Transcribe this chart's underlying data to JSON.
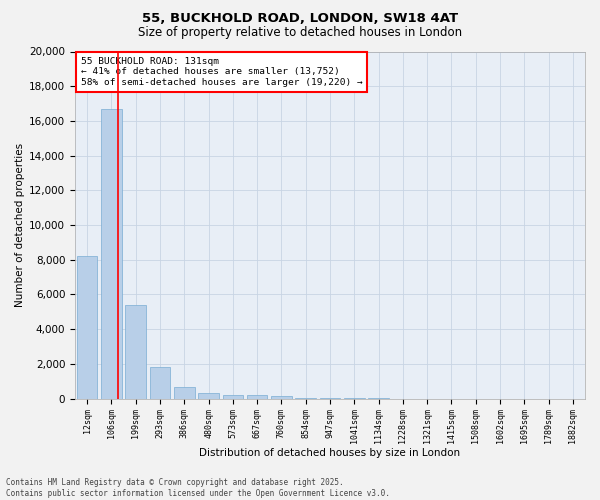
{
  "title1": "55, BUCKHOLD ROAD, LONDON, SW18 4AT",
  "title2": "Size of property relative to detached houses in London",
  "xlabel": "Distribution of detached houses by size in London",
  "ylabel": "Number of detached properties",
  "categories": [
    "12sqm",
    "106sqm",
    "199sqm",
    "293sqm",
    "386sqm",
    "480sqm",
    "573sqm",
    "667sqm",
    "760sqm",
    "854sqm",
    "947sqm",
    "1041sqm",
    "1134sqm",
    "1228sqm",
    "1321sqm",
    "1415sqm",
    "1508sqm",
    "1602sqm",
    "1695sqm",
    "1789sqm",
    "1882sqm"
  ],
  "values": [
    8200,
    16700,
    5400,
    1850,
    650,
    350,
    220,
    180,
    130,
    60,
    30,
    15,
    8,
    5,
    3,
    2,
    1,
    1,
    1,
    0,
    0
  ],
  "bar_color": "#b8cfe8",
  "bar_edge_color": "#7aadd4",
  "annotation_title": "55 BUCKHOLD ROAD: 131sqm",
  "annotation_line1": "← 41% of detached houses are smaller (13,752)",
  "annotation_line2": "58% of semi-detached houses are larger (19,220) →",
  "ylim": [
    0,
    20000
  ],
  "yticks": [
    0,
    2000,
    4000,
    6000,
    8000,
    10000,
    12000,
    14000,
    16000,
    18000,
    20000
  ],
  "grid_color": "#c8d4e4",
  "background_color": "#e8eef6",
  "fig_background": "#f2f2f2",
  "footer1": "Contains HM Land Registry data © Crown copyright and database right 2025.",
  "footer2": "Contains public sector information licensed under the Open Government Licence v3.0.",
  "red_line_x": 1.27
}
